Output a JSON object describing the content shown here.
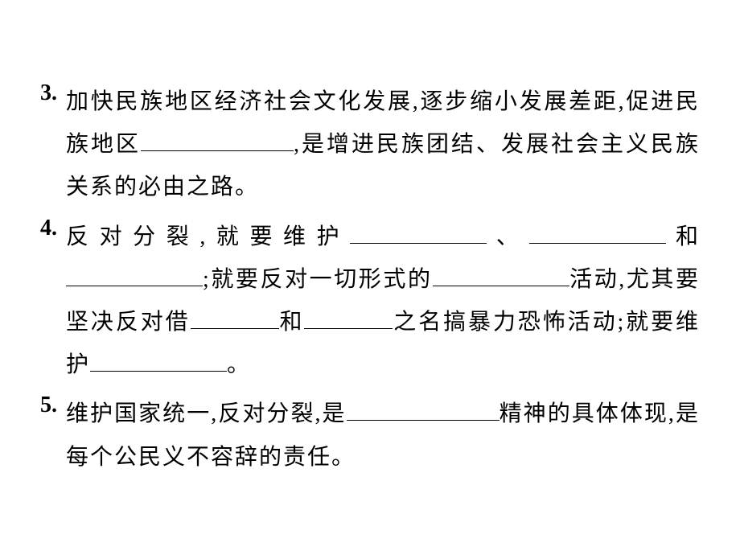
{
  "items": [
    {
      "number": "3.",
      "parts": [
        {
          "type": "text",
          "value": "加快民族地区经济社会文化发展,逐步缩小发展差距,促进民族地区"
        },
        {
          "type": "blank",
          "size": "long"
        },
        {
          "type": "text",
          "value": ",是增进民族团结、发展社会主义民族关系的必由之路。"
        }
      ]
    },
    {
      "number": "4.",
      "parts": [
        {
          "type": "text",
          "value": "反对分裂,就要维护"
        },
        {
          "type": "blank",
          "size": "med"
        },
        {
          "type": "text",
          "value": "、"
        },
        {
          "type": "blank",
          "size": "med"
        },
        {
          "type": "text",
          "value": "和"
        },
        {
          "type": "blank",
          "size": "med"
        },
        {
          "type": "text",
          "value": ";就要反对一切形式的"
        },
        {
          "type": "blank",
          "size": "med"
        },
        {
          "type": "text",
          "value": "活动,尤其要坚决反对借"
        },
        {
          "type": "blank",
          "size": "short"
        },
        {
          "type": "text",
          "value": "和"
        },
        {
          "type": "blank",
          "size": "short"
        },
        {
          "type": "text",
          "value": "之名搞暴力恐怖活动;就要维护"
        },
        {
          "type": "blank",
          "size": "med"
        },
        {
          "type": "text",
          "value": "。"
        }
      ]
    },
    {
      "number": "5.",
      "parts": [
        {
          "type": "text",
          "value": "维护国家统一,反对分裂,是"
        },
        {
          "type": "blank",
          "size": "long"
        },
        {
          "type": "text",
          "value": "精神的具体体现,是每个公民义不容辞的责任。"
        }
      ]
    }
  ],
  "styling": {
    "background_color": "#ffffff",
    "text_color": "#000000",
    "font_size": 28,
    "line_height": 1.9,
    "letter_spacing": 2,
    "number_font_weight": "bold",
    "blank_border_color": "#000000",
    "blank_border_width": 1.5,
    "blank_widths": {
      "long": 190,
      "med": 170,
      "short": 110
    }
  }
}
